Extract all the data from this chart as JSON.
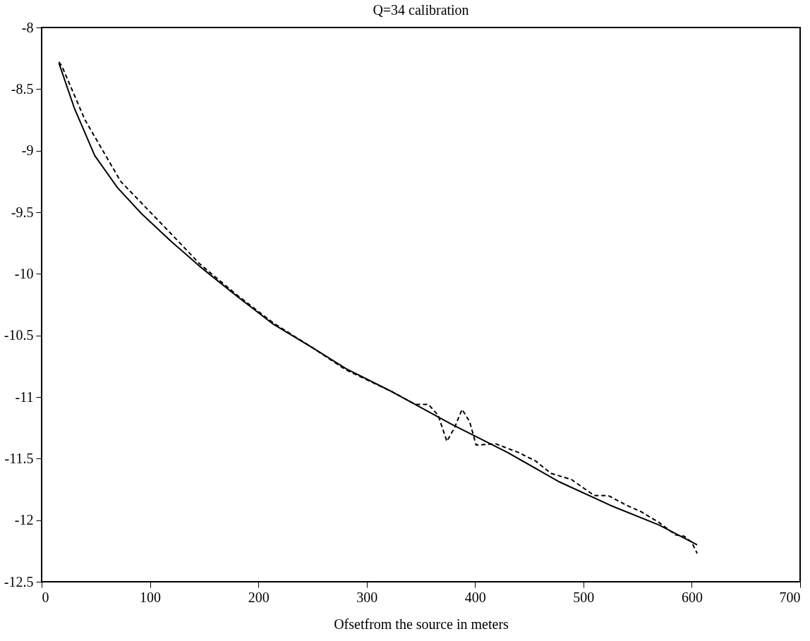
{
  "chart_data": {
    "type": "line",
    "title": "Q=34 calibration",
    "xlabel": "Ofsetfrom the source in meters",
    "xlim": [
      0,
      700
    ],
    "xticks": [
      0,
      100,
      200,
      300,
      400,
      500,
      600,
      700
    ],
    "ylim": [
      -12.5,
      -8
    ],
    "yticks": [
      -12.5,
      -12,
      -11.5,
      -11,
      -10.5,
      -10,
      -9.5,
      -9,
      -8.5,
      -8
    ],
    "grid": false,
    "marker": "none",
    "series": [
      {
        "color": "#000000",
        "line_style": "solid",
        "x": [
          16,
          30,
          49,
          70,
          92,
          120,
          146,
          180,
          214,
          250,
          281,
          324,
          378,
          430,
          478,
          525,
          570,
          605
        ],
        "values": [
          -8.29,
          -8.65,
          -9.04,
          -9.3,
          -9.51,
          -9.74,
          -9.94,
          -10.18,
          -10.41,
          -10.6,
          -10.77,
          -10.96,
          -11.22,
          -11.45,
          -11.69,
          -11.88,
          -12.04,
          -12.2
        ]
      },
      {
        "color": "#000000",
        "line_style": "dashed",
        "x": [
          16,
          19,
          40,
          73,
          119,
          146,
          180,
          214,
          250,
          281,
          324,
          345,
          357,
          366,
          374,
          381,
          388,
          395,
          401,
          419,
          440,
          456,
          470,
          489,
          510,
          523,
          540,
          553,
          570,
          585,
          593,
          600,
          605
        ],
        "values": [
          -8.28,
          -8.32,
          -8.75,
          -9.25,
          -9.67,
          -9.92,
          -10.17,
          -10.4,
          -10.6,
          -10.78,
          -10.96,
          -11.06,
          -11.06,
          -11.15,
          -11.36,
          -11.25,
          -11.1,
          -11.2,
          -11.39,
          -11.38,
          -11.45,
          -11.52,
          -11.62,
          -11.67,
          -11.8,
          -11.8,
          -11.88,
          -11.93,
          -12.02,
          -12.12,
          -12.13,
          -12.18,
          -12.27
        ]
      }
    ]
  }
}
